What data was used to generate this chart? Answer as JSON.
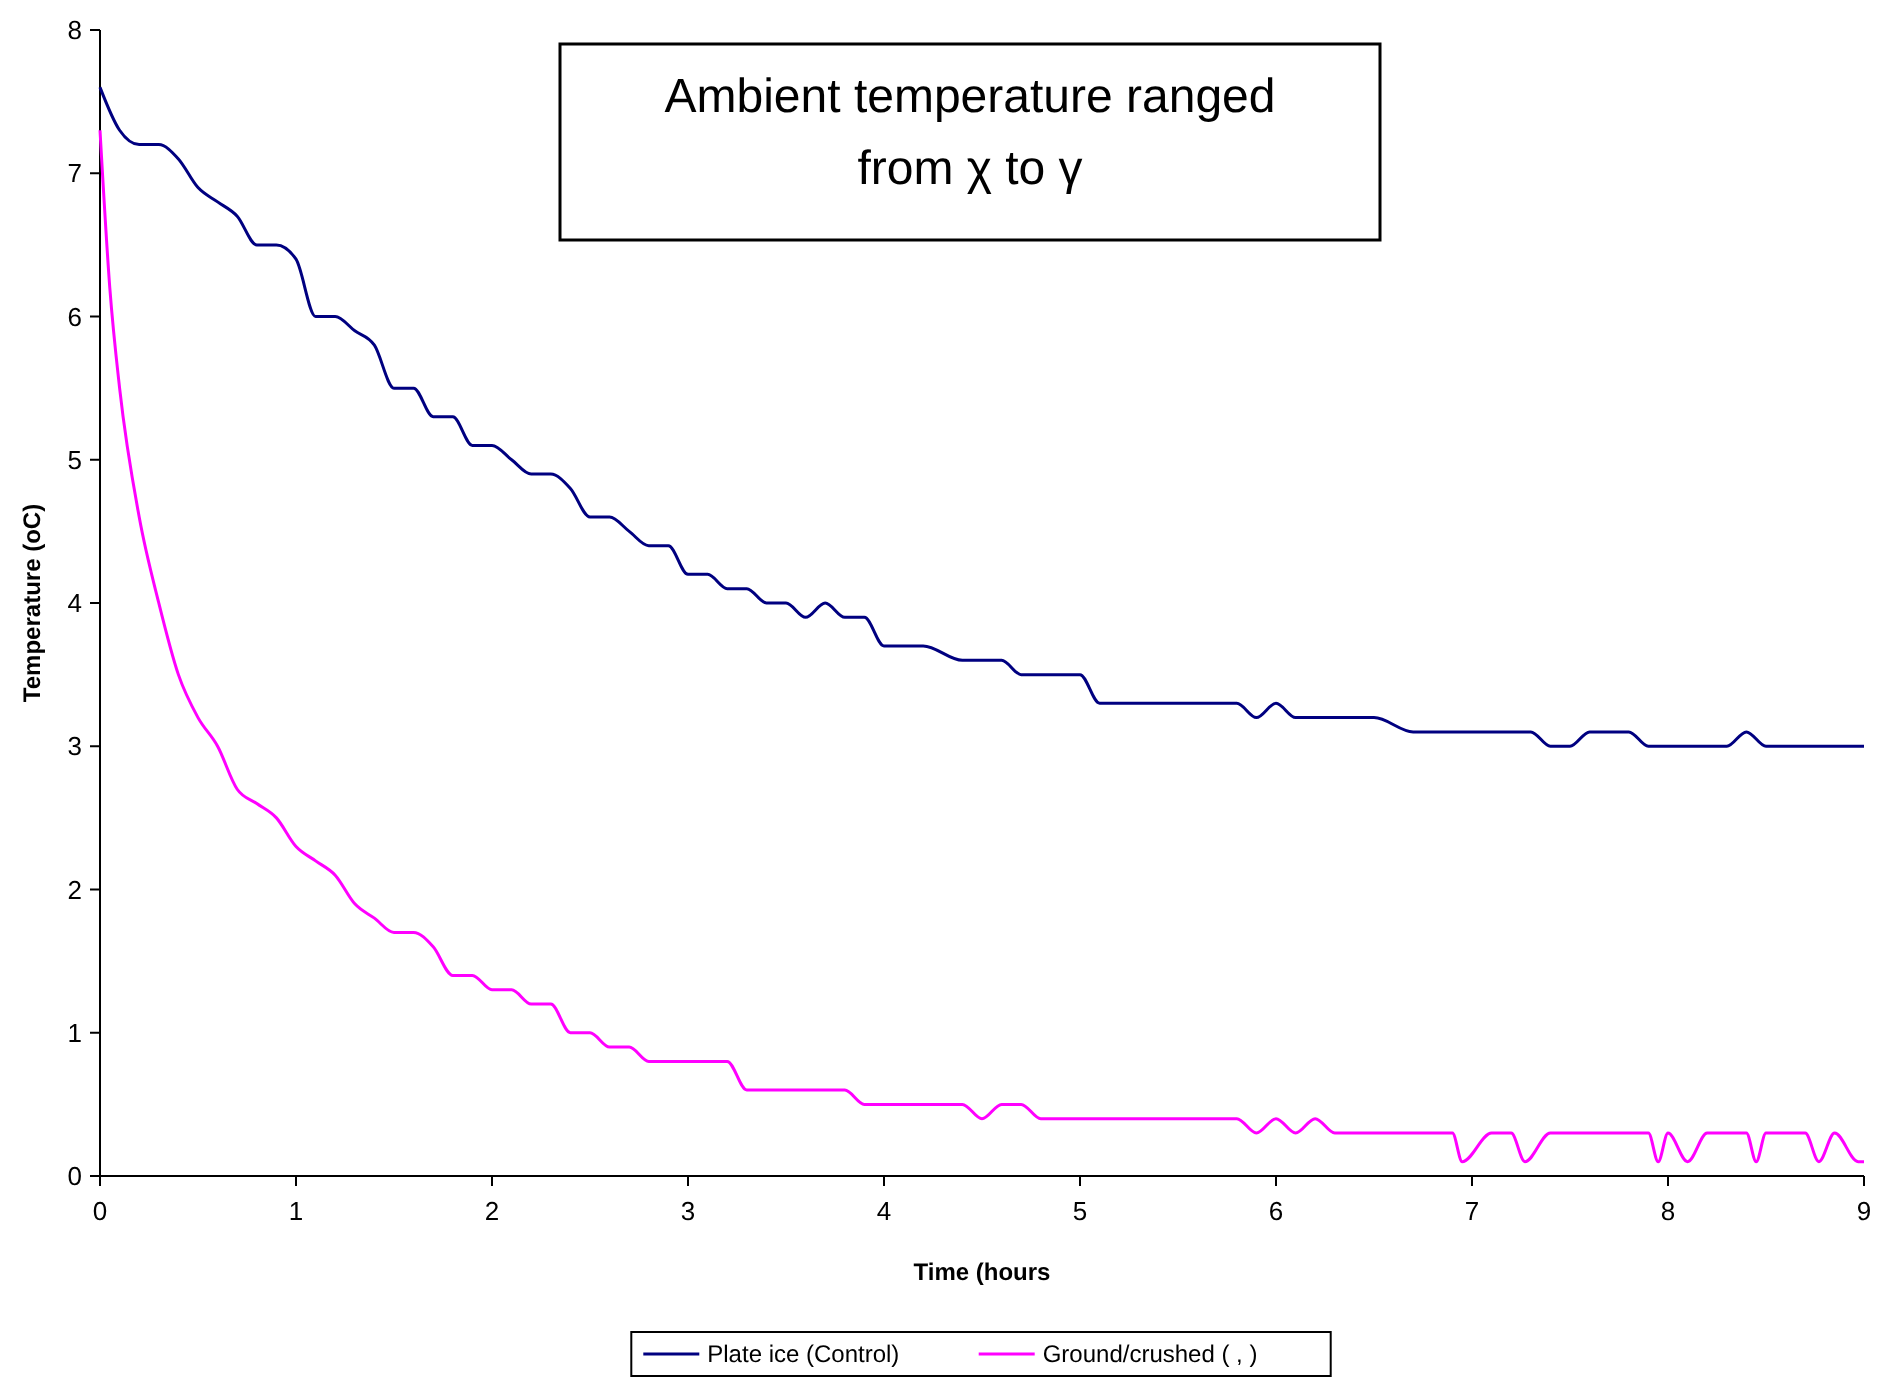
{
  "chart_data": {
    "type": "line",
    "xlabel": "Time (hours",
    "ylabel": "Temperature (oC)",
    "annotations": [
      "Ambient temperature ranged from χ to γ"
    ],
    "xlim": [
      0,
      9
    ],
    "xticks": [
      0,
      1,
      2,
      3,
      4,
      5,
      6,
      7,
      8,
      9
    ],
    "ylim": [
      0,
      8
    ],
    "yticks": [
      0,
      1,
      2,
      3,
      4,
      5,
      6,
      7,
      8
    ],
    "grid": false,
    "legend": "bottom",
    "marker": "none",
    "line_style": "solid",
    "series": [
      {
        "name": "Plate ice (Control)",
        "color": "#000080",
        "x": [
          0,
          0.1,
          0.2,
          0.3,
          0.4,
          0.5,
          0.6,
          0.7,
          0.8,
          0.9,
          1.0,
          1.1,
          1.2,
          1.3,
          1.4,
          1.5,
          1.6,
          1.7,
          1.8,
          1.9,
          2.0,
          2.1,
          2.2,
          2.3,
          2.4,
          2.5,
          2.6,
          2.7,
          2.8,
          2.9,
          3.0,
          3.1,
          3.2,
          3.3,
          3.4,
          3.5,
          3.6,
          3.7,
          3.8,
          3.9,
          4.0,
          4.2,
          4.4,
          4.6,
          4.7,
          5.0,
          5.1,
          5.5,
          5.8,
          5.9,
          6.0,
          6.1,
          6.5,
          6.7,
          7.0,
          7.3,
          7.4,
          7.5,
          7.6,
          7.7,
          7.8,
          7.9,
          8.3,
          8.4,
          8.5,
          9.0
        ],
        "values": [
          7.6,
          7.3,
          7.2,
          7.2,
          7.1,
          6.9,
          6.8,
          6.7,
          6.5,
          6.5,
          6.4,
          6.0,
          6.0,
          5.9,
          5.8,
          5.5,
          5.5,
          5.3,
          5.3,
          5.1,
          5.1,
          5.0,
          4.9,
          4.9,
          4.8,
          4.6,
          4.6,
          4.5,
          4.4,
          4.4,
          4.2,
          4.2,
          4.1,
          4.1,
          4.0,
          4.0,
          3.9,
          4.0,
          3.9,
          3.9,
          3.7,
          3.7,
          3.6,
          3.6,
          3.5,
          3.5,
          3.3,
          3.3,
          3.3,
          3.2,
          3.3,
          3.2,
          3.2,
          3.1,
          3.1,
          3.1,
          3.0,
          3.0,
          3.1,
          3.1,
          3.1,
          3.0,
          3.0,
          3.1,
          3.0,
          3.0
        ]
      },
      {
        "name": "Ground/crushed ( , )",
        "color": "#ff00ff",
        "x": [
          0,
          0.05,
          0.1,
          0.2,
          0.3,
          0.4,
          0.5,
          0.6,
          0.7,
          0.8,
          0.9,
          1.0,
          1.1,
          1.2,
          1.3,
          1.4,
          1.5,
          1.6,
          1.7,
          1.8,
          1.9,
          2.0,
          2.1,
          2.2,
          2.3,
          2.4,
          2.5,
          2.6,
          2.7,
          2.8,
          3.2,
          3.3,
          3.8,
          3.9,
          4.4,
          4.5,
          4.6,
          4.7,
          4.8,
          5.8,
          5.9,
          6.0,
          6.1,
          6.2,
          6.3,
          6.9,
          6.95,
          7.1,
          7.2,
          7.27,
          7.4,
          7.9,
          7.95,
          8.0,
          8.1,
          8.2,
          8.4,
          8.45,
          8.5,
          8.7,
          8.77,
          8.85,
          8.97,
          9.0
        ],
        "values": [
          7.3,
          6.2,
          5.5,
          4.6,
          4.0,
          3.5,
          3.2,
          3.0,
          2.7,
          2.6,
          2.5,
          2.3,
          2.2,
          2.1,
          1.9,
          1.8,
          1.7,
          1.7,
          1.6,
          1.4,
          1.4,
          1.3,
          1.3,
          1.2,
          1.2,
          1.0,
          1.0,
          0.9,
          0.9,
          0.8,
          0.8,
          0.6,
          0.6,
          0.5,
          0.5,
          0.4,
          0.5,
          0.5,
          0.4,
          0.4,
          0.3,
          0.4,
          0.3,
          0.4,
          0.3,
          0.3,
          0.1,
          0.3,
          0.3,
          0.1,
          0.3,
          0.3,
          0.1,
          0.3,
          0.1,
          0.3,
          0.3,
          0.1,
          0.3,
          0.3,
          0.1,
          0.3,
          0.1,
          0.1
        ]
      }
    ]
  }
}
